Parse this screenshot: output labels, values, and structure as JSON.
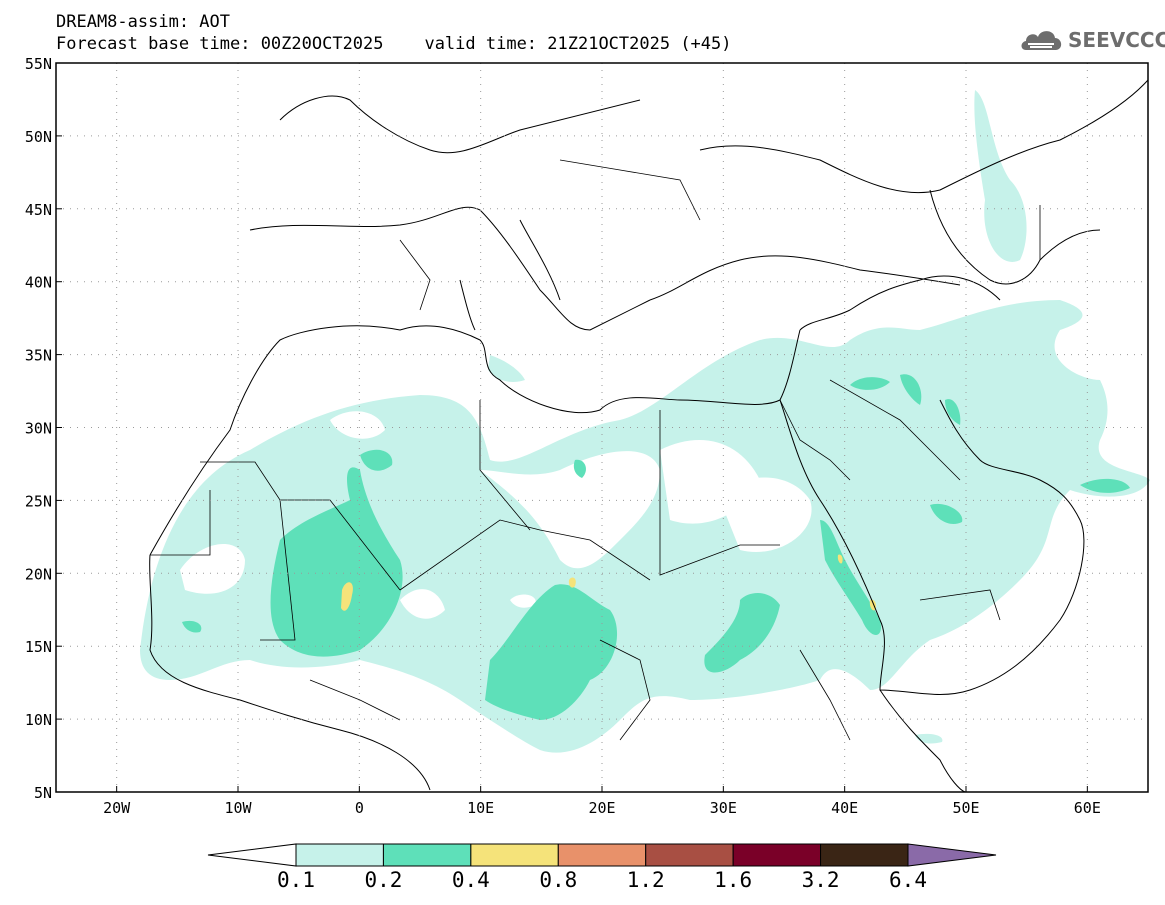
{
  "title": {
    "line1": "DREAM8-assim: AOT",
    "line2": "Forecast base time: 00Z20OCT2025    valid time: 21Z21OCT2025 (+45)"
  },
  "logo": {
    "text": "SEEVCCC",
    "icon": "cloud-icon"
  },
  "map": {
    "lon_range": [
      -25,
      65
    ],
    "lat_range": [
      5,
      55
    ],
    "lat_ticks": [
      "5N",
      "10N",
      "15N",
      "20N",
      "25N",
      "30N",
      "35N",
      "40N",
      "45N",
      "50N",
      "55N"
    ],
    "lon_ticks": [
      "20W",
      "10W",
      "0",
      "10E",
      "20E",
      "30E",
      "40E",
      "50E",
      "60E"
    ],
    "grid": true
  },
  "colorbar": {
    "labels": [
      "0.1",
      "0.2",
      "0.4",
      "0.8",
      "1.2",
      "1.6",
      "3.2",
      "6.4"
    ],
    "colors": [
      "#ffffff",
      "#c6f2ea",
      "#5ee0b9",
      "#f5e37a",
      "#e8916a",
      "#a84f43",
      "#7a0028",
      "#3a2515",
      "#8a6aa8"
    ]
  }
}
